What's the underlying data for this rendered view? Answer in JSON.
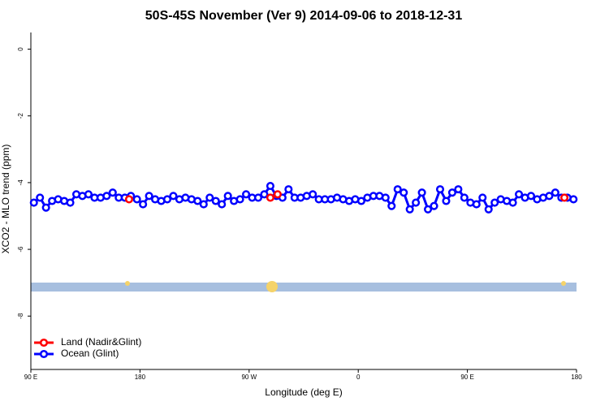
{
  "chart_data": {
    "type": "line",
    "title": "50S-45S November (Ver 9)   2014-09-06 to 2018-12-31",
    "x_label": "Longitude (deg E)",
    "y_label": "XCO2 - MLO trend (ppm)",
    "xlim": [
      90,
      540
    ],
    "ylim": [
      -9.6,
      0.5
    ],
    "xticks": [
      {
        "value": 90,
        "label": "90 E"
      },
      180,
      {
        "value": 270,
        "label": "90 W"
      },
      {
        "value": 360,
        "label": "0"
      },
      {
        "value": 450,
        "label": "90 E"
      },
      {
        "value": 540,
        "label": "180"
      }
    ],
    "yticks": [
      0,
      -2,
      -4,
      -6,
      -8
    ],
    "legend": "bottom-left",
    "series": [
      {
        "name": "Land (Nadir&Glint)",
        "color": "#ff0000",
        "x": [
          171,
          287.5,
          293.5,
          530
        ],
        "values": [
          -4.5,
          -4.45,
          -4.35,
          -4.45
        ]
      },
      {
        "name": "Ocean (Glint)",
        "color": "#0000ff",
        "x": [
          92.5,
          97.5,
          102.5,
          107.5,
          112.5,
          117.5,
          122.5,
          127.5,
          132.5,
          137.5,
          142.5,
          147.5,
          152.5,
          157.5,
          162.5,
          167.5,
          172.5,
          177.5,
          182.5,
          187.5,
          192.5,
          197.5,
          202.5,
          207.5,
          212.5,
          217.5,
          222.5,
          227.5,
          232.5,
          237.5,
          242.5,
          247.5,
          252.5,
          257.5,
          262.5,
          267.5,
          272.5,
          277.5,
          282.5,
          287.5,
          292.5,
          297.5,
          302.5,
          307.5,
          312.5,
          317.5,
          322.5,
          327.5,
          332.5,
          337.5,
          342.5,
          347.5,
          352.5,
          357.5,
          362.5,
          367.5,
          372.5,
          377.5,
          382.5,
          387.5,
          392.5,
          397.5,
          402.5,
          407.5,
          412.5,
          417.5,
          422.5,
          427.5,
          432.5,
          437.5,
          442.5,
          447.5,
          452.5,
          457.5,
          462.5,
          467.5,
          472.5,
          477.5,
          482.5,
          487.5,
          492.5,
          497.5,
          502.5,
          507.5,
          512.5,
          517.5,
          522.5,
          527.5,
          532.5,
          537.5
        ],
        "values": [
          -4.6,
          -4.45,
          -4.75,
          -4.55,
          -4.5,
          -4.55,
          -4.6,
          -4.35,
          -4.4,
          -4.35,
          -4.45,
          -4.45,
          -4.4,
          -4.3,
          -4.45,
          -4.45,
          -4.4,
          -4.5,
          -4.65,
          -4.4,
          -4.5,
          -4.55,
          -4.5,
          -4.4,
          -4.5,
          -4.45,
          -4.5,
          -4.55,
          -4.65,
          -4.45,
          -4.55,
          -4.65,
          -4.4,
          -4.55,
          -4.5,
          -4.35,
          -4.45,
          -4.45,
          -4.35,
          -4.1,
          -4.4,
          -4.45,
          -4.2,
          -4.45,
          -4.45,
          -4.4,
          -4.35,
          -4.5,
          -4.5,
          -4.5,
          -4.45,
          -4.5,
          -4.55,
          -4.5,
          -4.55,
          -4.45,
          -4.4,
          -4.4,
          -4.45,
          -4.7,
          -4.2,
          -4.3,
          -4.8,
          -4.6,
          -4.3,
          -4.8,
          -4.7,
          -4.2,
          -4.55,
          -4.3,
          -4.2,
          -4.45,
          -4.6,
          -4.65,
          -4.45,
          -4.8,
          -4.6,
          -4.5,
          -4.55,
          -4.6,
          -4.35,
          -4.45,
          -4.4,
          -4.5,
          -4.45,
          -4.4,
          -4.3,
          -4.45,
          -4.45,
          -4.5
        ]
      }
    ]
  }
}
